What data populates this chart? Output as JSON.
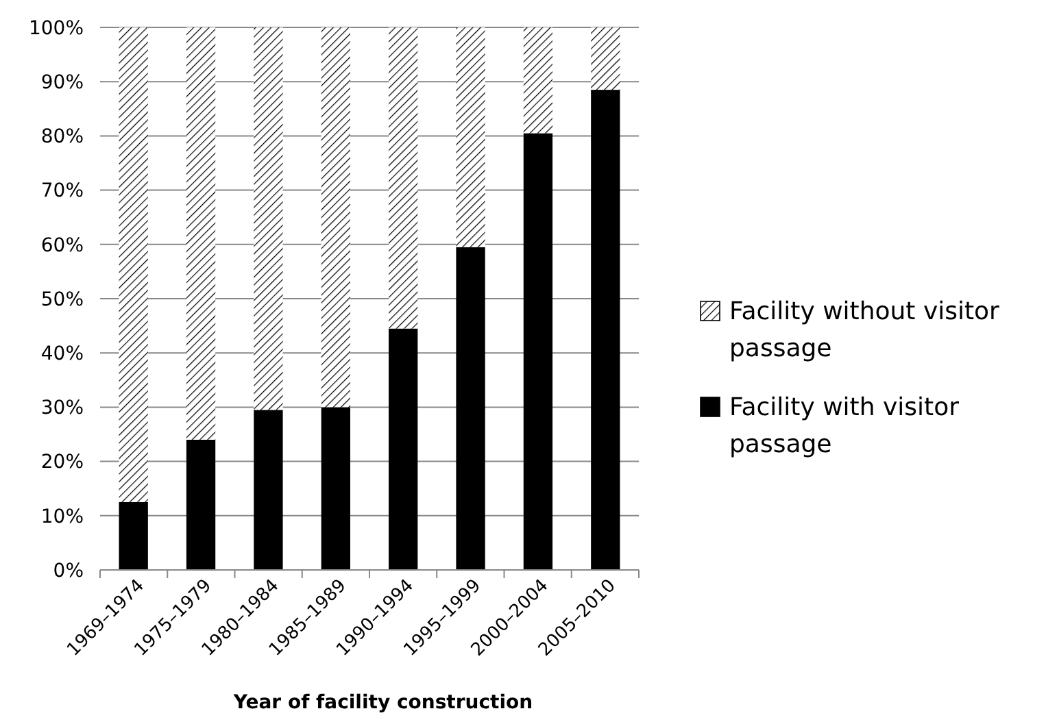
{
  "chart_data": {
    "type": "bar",
    "stacked": true,
    "xlabel": "Year of facility construction",
    "categories": [
      "1969–1974",
      "1975–1979",
      "1980–1984",
      "1985–1989",
      "1990–1994",
      "1995–1999",
      "2000–2004",
      "2005–2010"
    ],
    "series": [
      {
        "name": "Facility with visitor passage",
        "color": "#000000",
        "values": [
          12.5,
          24,
          29.5,
          30,
          44.5,
          59.5,
          80.5,
          88.5
        ]
      },
      {
        "name": "Facility without visitor passage",
        "color": "#ffffff",
        "values": [
          87.5,
          76,
          70.5,
          70,
          55.5,
          40.5,
          19.5,
          11.5
        ]
      }
    ],
    "ylim": [
      0,
      100
    ],
    "yticks": [
      {
        "value": 0,
        "label": "0%"
      },
      {
        "value": 10,
        "label": "10%"
      },
      {
        "value": 20,
        "label": "20%"
      },
      {
        "value": 30,
        "label": "30%"
      },
      {
        "value": 40,
        "label": "40%"
      },
      {
        "value": 50,
        "label": "50%"
      },
      {
        "value": 60,
        "label": "60%"
      },
      {
        "value": 70,
        "label": "70%"
      },
      {
        "value": 80,
        "label": "80%"
      },
      {
        "value": 90,
        "label": "90%"
      },
      {
        "value": 100,
        "label": "100%"
      }
    ],
    "grid": "y",
    "legend": "right"
  }
}
